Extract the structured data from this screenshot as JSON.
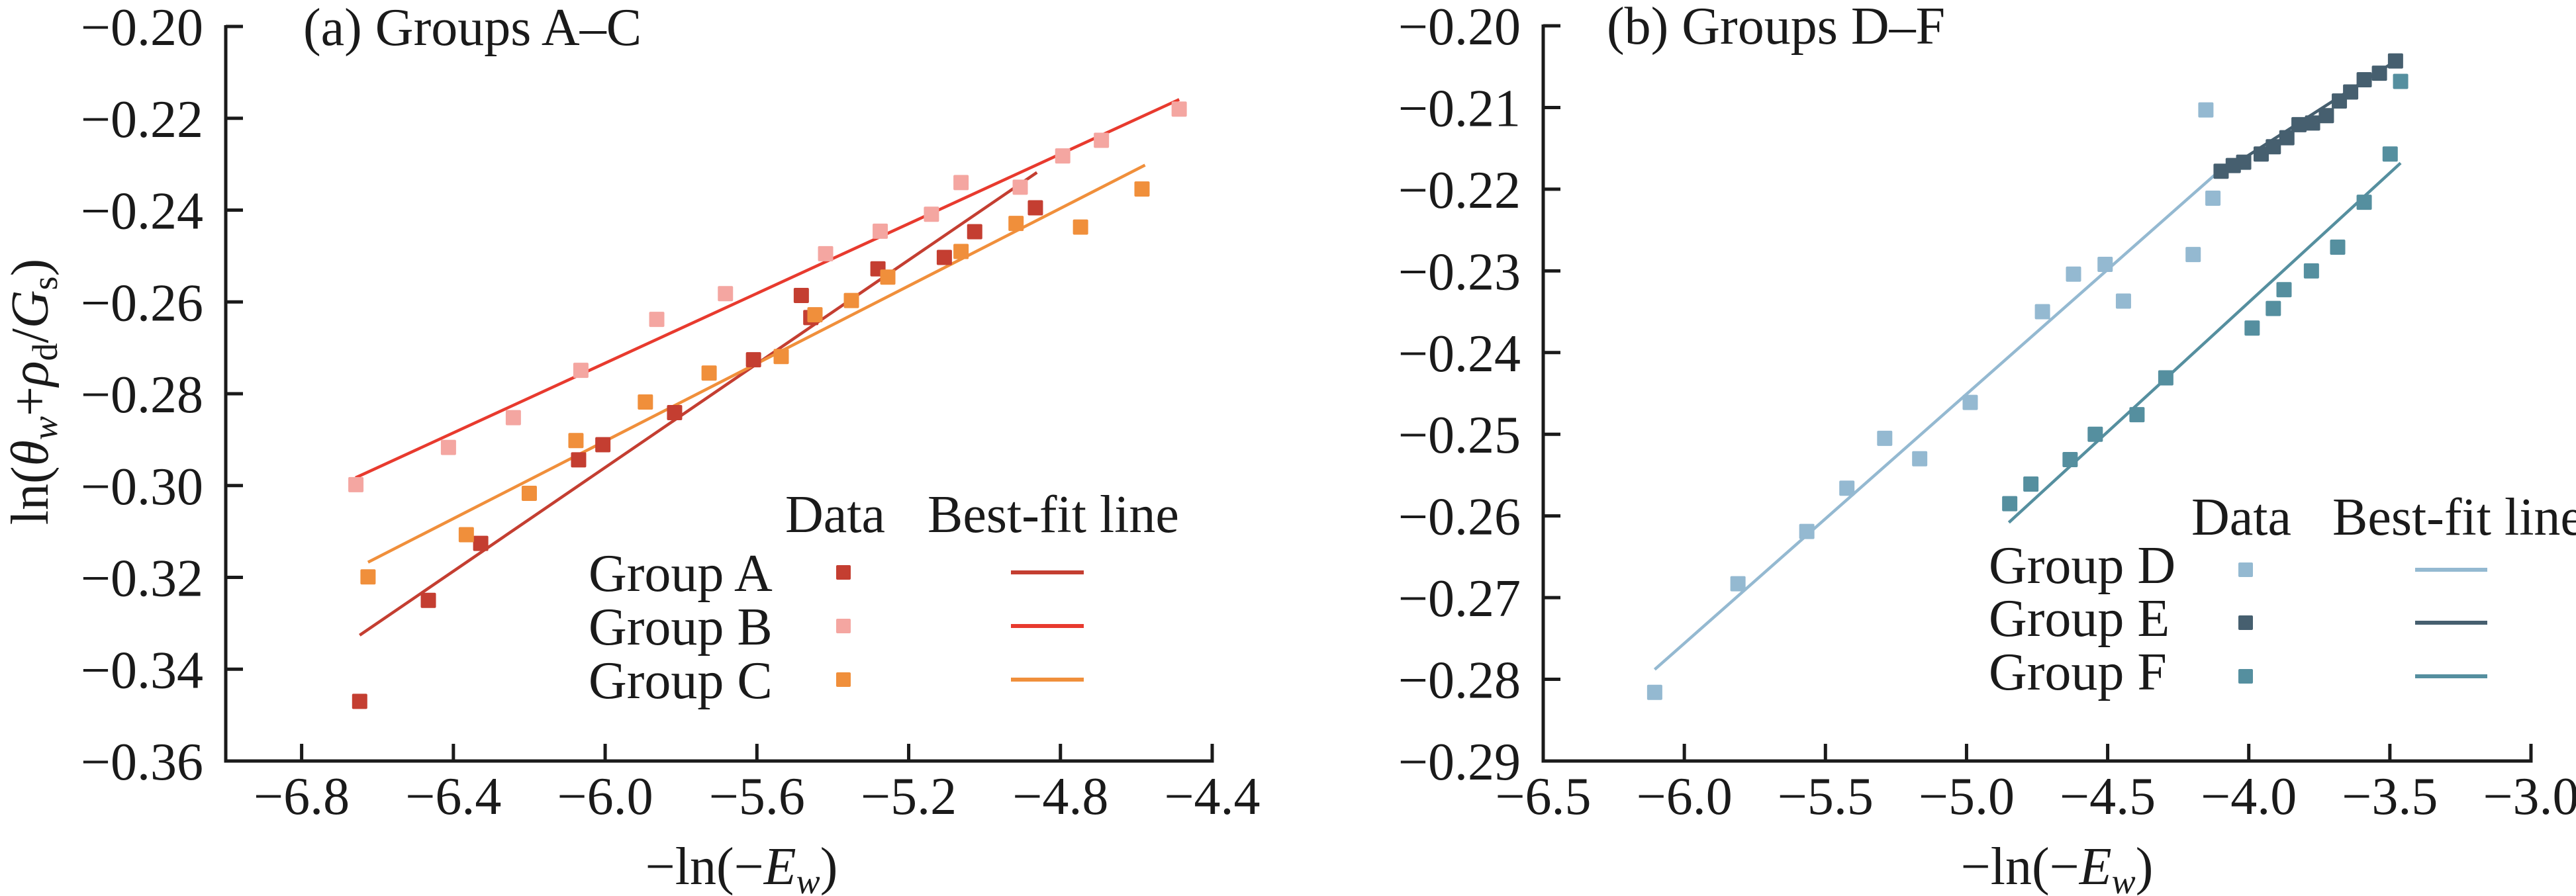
{
  "chart_data": [
    {
      "type": "scatter",
      "panel": "a",
      "title": "(a) Groups A–C",
      "xlabel": "−ln(−E_w)",
      "ylabel": "ln(θ_w+ρ_d/G_s)",
      "xlim": [
        -7.0,
        -4.4
      ],
      "ylim": [
        -0.36,
        -0.2
      ],
      "xticks": [
        -6.8,
        -6.4,
        -6.0,
        -5.6,
        -5.2,
        -4.8,
        -4.4
      ],
      "xtick_labels": [
        "−6.8",
        "−6.4",
        "−6.0",
        "−5.6",
        "−5.2",
        "−4.8",
        "−4.4"
      ],
      "yticks": [
        -0.2,
        -0.22,
        -0.24,
        -0.26,
        -0.28,
        -0.3,
        -0.32,
        -0.34,
        -0.36
      ],
      "ytick_labels": [
        "−0.20",
        "−0.22",
        "−0.24",
        "−0.26",
        "−0.28",
        "−0.30",
        "−0.32",
        "−0.34",
        "−0.36"
      ],
      "grid": false,
      "legend": {
        "placement": "bottom-right",
        "header_data": "Data",
        "header_fit": "Best-fit line"
      },
      "series": [
        {
          "name": "Group A",
          "marker_color": "#c43e31",
          "line_color": "#c43e31",
          "x": [
            -6.647,
            -6.466,
            -6.328,
            -6.07,
            -6.006,
            -5.817,
            -5.609,
            -5.483,
            -5.458,
            -5.281,
            -5.106,
            -5.026,
            -4.866
          ],
          "y": [
            -0.347,
            -0.325,
            -0.3126,
            -0.2944,
            -0.2911,
            -0.2841,
            -0.2726,
            -0.2586,
            -0.2634,
            -0.2528,
            -0.2503,
            -0.2447,
            -0.2395
          ],
          "fit": {
            "x": [
              -6.647,
              -4.862
            ],
            "y": [
              -0.3326,
              -0.2318
            ]
          }
        },
        {
          "name": "Group B",
          "marker_color": "#f4a6a1",
          "line_color": "#e83a2e",
          "x": [
            -6.657,
            -6.413,
            -6.242,
            -6.064,
            -5.864,
            -5.683,
            -5.419,
            -5.275,
            -5.14,
            -5.062,
            -4.906,
            -4.794,
            -4.692,
            -4.487
          ],
          "y": [
            -0.2998,
            -0.2917,
            -0.2852,
            -0.2749,
            -0.2638,
            -0.2582,
            -0.2495,
            -0.2446,
            -0.2409,
            -0.234,
            -0.235,
            -0.2282,
            -0.2248,
            -0.218
          ],
          "fit": {
            "x": [
              -6.658,
              -4.487
            ],
            "y": [
              -0.2983,
              -0.2159
            ]
          }
        },
        {
          "name": "Group C",
          "marker_color": "#f08f3b",
          "line_color": "#f08f3b",
          "x": [
            -6.625,
            -6.366,
            -6.2,
            -6.077,
            -5.894,
            -5.726,
            -5.536,
            -5.447,
            -5.351,
            -5.255,
            -5.062,
            -4.917,
            -4.747,
            -4.585
          ],
          "y": [
            -0.3199,
            -0.3107,
            -0.3017,
            -0.2902,
            -0.2818,
            -0.2755,
            -0.2719,
            -0.2628,
            -0.2597,
            -0.2546,
            -0.249,
            -0.2429,
            -0.2437,
            -0.2354
          ],
          "fit": {
            "x": [
              -6.625,
              -4.577
            ],
            "y": [
              -0.3167,
              -0.2302
            ]
          }
        }
      ]
    },
    {
      "type": "scatter",
      "panel": "b",
      "title": "(b) Groups D–F",
      "xlabel": "−ln(−E_w)",
      "ylabel": "",
      "xlim": [
        -6.5,
        -3.0
      ],
      "ylim": [
        -0.29,
        -0.2
      ],
      "xticks": [
        -6.5,
        -6.0,
        -5.5,
        -5.0,
        -4.5,
        -4.0,
        -3.5,
        -3.0
      ],
      "xtick_labels": [
        "−6.5",
        "−6.0",
        "−5.5",
        "−5.0",
        "−4.5",
        "−4.0",
        "−3.5",
        "−3.0"
      ],
      "yticks": [
        -0.2,
        -0.21,
        -0.22,
        -0.23,
        -0.24,
        -0.25,
        -0.26,
        -0.27,
        -0.28,
        -0.29
      ],
      "ytick_labels": [
        "−0.20",
        "−0.21",
        "−0.22",
        "−0.23",
        "−0.24",
        "−0.25",
        "−0.26",
        "−0.27",
        "−0.28",
        "−0.29"
      ],
      "grid": false,
      "legend": {
        "placement": "bottom-right",
        "header_data": "Data",
        "header_fit": "Best-fit line"
      },
      "series": [
        {
          "name": "Group D",
          "marker_color": "#94b9d1",
          "line_color": "#94b9d1",
          "x": [
            -6.105,
            -5.81,
            -5.566,
            -5.424,
            -5.29,
            -5.166,
            -4.987,
            -4.731,
            -4.621,
            -4.509,
            -4.444,
            -4.197,
            -4.152,
            -4.127
          ],
          "y": [
            -0.2816,
            -0.2683,
            -0.2619,
            -0.2566,
            -0.2505,
            -0.253,
            -0.2461,
            -0.235,
            -0.2304,
            -0.2292,
            -0.2337,
            -0.228,
            -0.2103,
            -0.2211
          ],
          "fit": {
            "x": [
              -6.105,
              -4.122
            ],
            "y": [
              -0.2788,
              -0.2183
            ]
          }
        },
        {
          "name": "Group E",
          "marker_color": "#465f6f",
          "line_color": "#465f6f",
          "x": [
            -4.098,
            -4.055,
            -4.018,
            -3.956,
            -3.913,
            -3.865,
            -3.822,
            -3.774,
            -3.725,
            -3.679,
            -3.639,
            -3.591,
            -3.537,
            -3.48
          ],
          "y": [
            -0.2178,
            -0.2171,
            -0.2167,
            -0.2157,
            -0.2148,
            -0.2137,
            -0.2121,
            -0.2119,
            -0.211,
            -0.2092,
            -0.2081,
            -0.2066,
            -0.2058,
            -0.2043
          ],
          "fit": {
            "x": [
              -4.098,
              -3.48
            ],
            "y": [
              -0.218,
              -0.2043
            ]
          }
        },
        {
          "name": "Group F",
          "marker_color": "#558f9f",
          "line_color": "#558f9f",
          "x": [
            -4.847,
            -4.772,
            -4.633,
            -4.544,
            -4.396,
            -4.294,
            -3.988,
            -3.913,
            -3.875,
            -3.778,
            -3.685,
            -3.591,
            -3.499,
            -3.462
          ],
          "y": [
            -0.2585,
            -0.2561,
            -0.2531,
            -0.25,
            -0.2476,
            -0.2431,
            -0.237,
            -0.2346,
            -0.2323,
            -0.23,
            -0.2271,
            -0.2216,
            -0.2157,
            -0.2068
          ],
          "fit": {
            "x": [
              -4.85,
              -3.462
            ],
            "y": [
              -0.2608,
              -0.2168
            ]
          }
        }
      ]
    }
  ]
}
